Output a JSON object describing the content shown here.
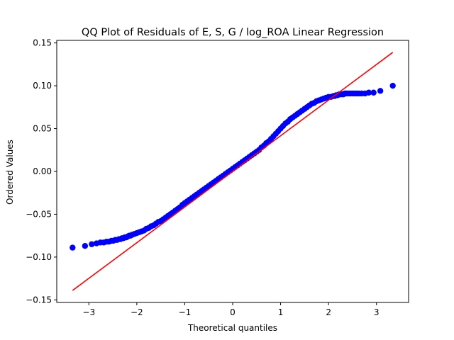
{
  "chart_data": {
    "type": "scatter",
    "title": "QQ Plot of Residuals of E, S, G / log_ROA Linear Regression",
    "xlabel": "Theoretical quantiles",
    "ylabel": "Ordered Values",
    "xlim": [
      -3.67,
      3.67
    ],
    "ylim": [
      -0.153,
      0.153
    ],
    "x_ticks": [
      -3,
      -2,
      -1,
      0,
      1,
      2,
      3
    ],
    "x_tick_labels": [
      "−3",
      "−2",
      "−1",
      "0",
      "1",
      "2",
      "3"
    ],
    "y_ticks": [
      -0.15,
      -0.1,
      -0.05,
      0.0,
      0.05,
      0.1,
      0.15
    ],
    "y_tick_labels": [
      "−0.15",
      "−0.10",
      "−0.05",
      "0.00",
      "0.05",
      "0.10",
      "0.15"
    ],
    "grid": false,
    "series": [
      {
        "kind": "points",
        "color": "#0000ff",
        "x": [
          -3.34,
          -3.08,
          -2.94,
          -2.84,
          -2.76,
          -2.69,
          -2.63,
          -2.58,
          -2.53,
          -2.49,
          -2.45,
          -2.41,
          -2.37,
          -2.34,
          -2.31,
          -2.28,
          -2.25,
          -2.22,
          -2.19,
          -2.16,
          -2.13,
          -2.1,
          -2.05,
          -2.0,
          -1.95,
          -1.9,
          -1.85,
          -1.8,
          -1.75,
          -1.7,
          -1.65,
          -1.6,
          -1.55,
          -1.5,
          -1.45,
          -1.4,
          -1.35,
          -1.3,
          -1.25,
          -1.2,
          -1.15,
          -1.1,
          -1.05,
          -1.0,
          -0.95,
          -0.9,
          -0.85,
          -0.8,
          -0.75,
          -0.7,
          -0.65,
          -0.6,
          -0.55,
          -0.5,
          -0.45,
          -0.4,
          -0.35,
          -0.3,
          -0.25,
          -0.2,
          -0.15,
          -0.1,
          -0.05,
          0.0,
          0.05,
          0.1,
          0.15,
          0.2,
          0.25,
          0.3,
          0.35,
          0.4,
          0.45,
          0.5,
          0.55,
          0.6,
          0.65,
          0.7,
          0.75,
          0.8,
          0.85,
          0.9,
          0.95,
          1.0,
          1.05,
          1.1,
          1.15,
          1.2,
          1.25,
          1.3,
          1.35,
          1.4,
          1.45,
          1.5,
          1.55,
          1.6,
          1.65,
          1.7,
          1.75,
          1.8,
          1.85,
          1.9,
          1.95,
          2.0,
          2.05,
          2.1,
          2.13,
          2.16,
          2.19,
          2.22,
          2.25,
          2.28,
          2.31,
          2.34,
          2.37,
          2.41,
          2.45,
          2.49,
          2.53,
          2.58,
          2.63,
          2.69,
          2.76,
          2.84,
          2.94,
          3.08,
          3.34
        ],
        "y": [
          -0.089,
          -0.087,
          -0.085,
          -0.084,
          -0.083,
          -0.083,
          -0.082,
          -0.082,
          -0.081,
          -0.081,
          -0.08,
          -0.08,
          -0.079,
          -0.079,
          -0.078,
          -0.078,
          -0.077,
          -0.077,
          -0.076,
          -0.075,
          -0.075,
          -0.074,
          -0.073,
          -0.072,
          -0.071,
          -0.07,
          -0.069,
          -0.067,
          -0.066,
          -0.064,
          -0.063,
          -0.061,
          -0.059,
          -0.058,
          -0.056,
          -0.054,
          -0.052,
          -0.05,
          -0.048,
          -0.046,
          -0.044,
          -0.042,
          -0.039,
          -0.037,
          -0.035,
          -0.033,
          -0.031,
          -0.029,
          -0.027,
          -0.025,
          -0.023,
          -0.021,
          -0.019,
          -0.017,
          -0.015,
          -0.013,
          -0.011,
          -0.009,
          -0.007,
          -0.005,
          -0.003,
          -0.001,
          0.001,
          0.003,
          0.005,
          0.007,
          0.009,
          0.011,
          0.013,
          0.015,
          0.017,
          0.019,
          0.021,
          0.023,
          0.025,
          0.028,
          0.03,
          0.033,
          0.035,
          0.038,
          0.041,
          0.044,
          0.047,
          0.05,
          0.053,
          0.056,
          0.058,
          0.061,
          0.063,
          0.065,
          0.067,
          0.069,
          0.071,
          0.073,
          0.075,
          0.077,
          0.079,
          0.08,
          0.082,
          0.083,
          0.084,
          0.085,
          0.086,
          0.087,
          0.087,
          0.088,
          0.088,
          0.089,
          0.089,
          0.09,
          0.09,
          0.09,
          0.09,
          0.091,
          0.091,
          0.091,
          0.091,
          0.091,
          0.091,
          0.091,
          0.091,
          0.091,
          0.091,
          0.092,
          0.092,
          0.094,
          0.1
        ]
      },
      {
        "kind": "line",
        "color": "#ff0000",
        "x": [
          -3.34,
          3.34
        ],
        "y": [
          -0.139,
          0.139
        ]
      }
    ]
  }
}
